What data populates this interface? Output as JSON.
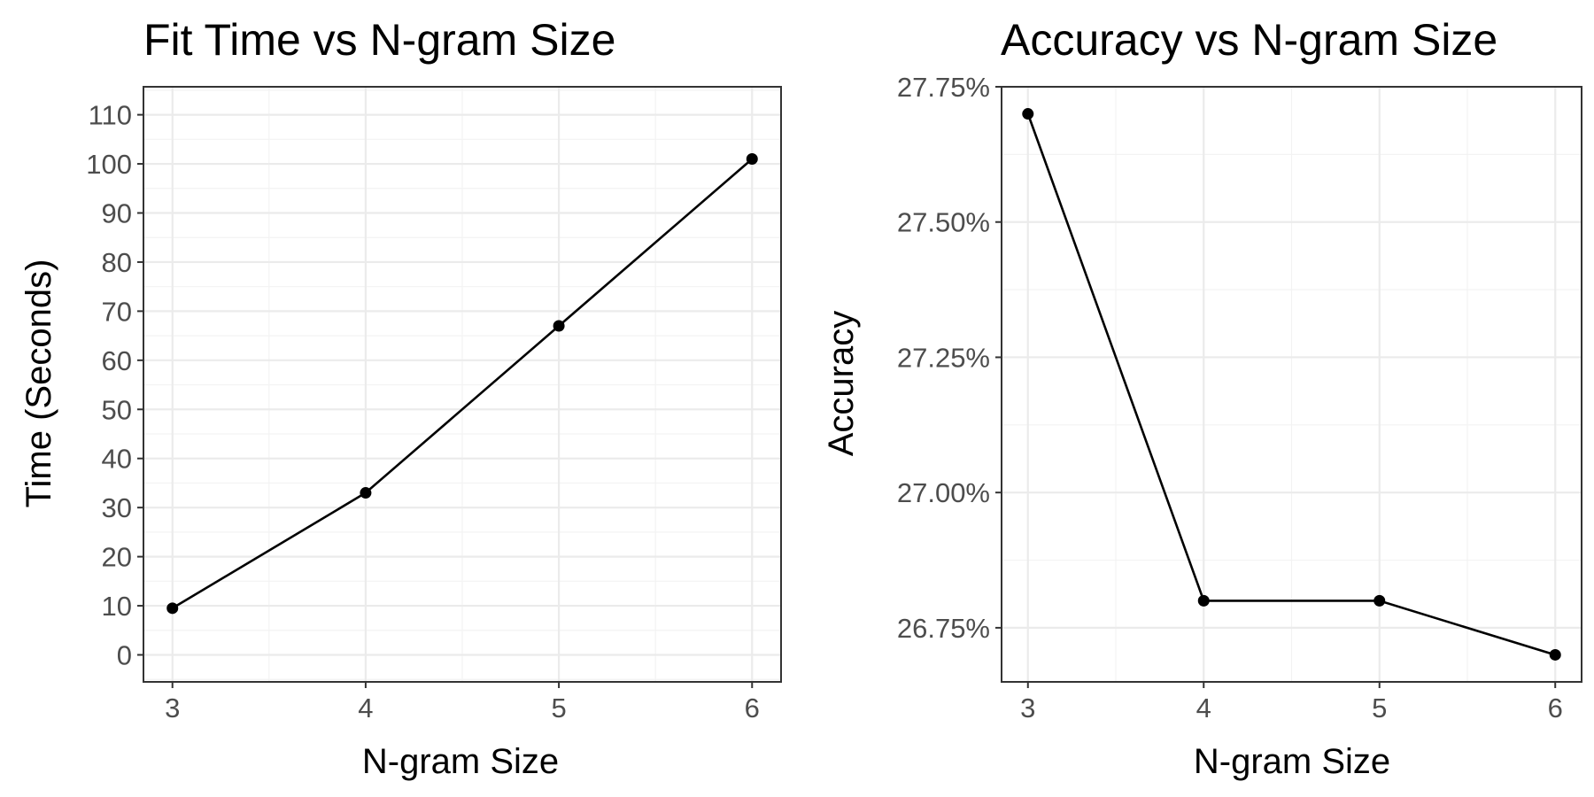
{
  "chart_data": [
    {
      "type": "line",
      "title": "Fit Time vs N-gram Size",
      "xlabel": "N-gram Size",
      "ylabel": "Time (Seconds)",
      "x": [
        3,
        4,
        5,
        6
      ],
      "y": [
        9.5,
        33,
        67,
        101
      ],
      "xticks": [
        3,
        4,
        5,
        6
      ],
      "yticks": [
        0,
        10,
        20,
        30,
        40,
        50,
        60,
        70,
        80,
        90,
        100,
        110
      ],
      "ytick_labels": [
        "0",
        "10",
        "20",
        "30",
        "40",
        "50",
        "60",
        "70",
        "80",
        "90",
        "100",
        "110"
      ],
      "xlim": [
        2.85,
        6.15
      ],
      "ylim": [
        -5.5,
        115.7
      ],
      "grid": true,
      "line_color": "#000000",
      "point_color": "#000000"
    },
    {
      "type": "line",
      "title": "Accuracy vs N-gram Size",
      "xlabel": "N-gram Size",
      "ylabel": "Accuracy",
      "x": [
        3,
        4,
        5,
        6
      ],
      "y": [
        27.7,
        26.8,
        26.8,
        26.7
      ],
      "xticks": [
        3,
        4,
        5,
        6
      ],
      "yticks": [
        26.75,
        27.0,
        27.25,
        27.5,
        27.75
      ],
      "ytick_labels": [
        "26.75%",
        "27.00%",
        "27.25%",
        "27.50%",
        "27.75%"
      ],
      "xlim": [
        2.85,
        6.15
      ],
      "ylim": [
        26.65,
        27.75
      ],
      "grid": true,
      "line_color": "#000000",
      "point_color": "#000000"
    }
  ]
}
